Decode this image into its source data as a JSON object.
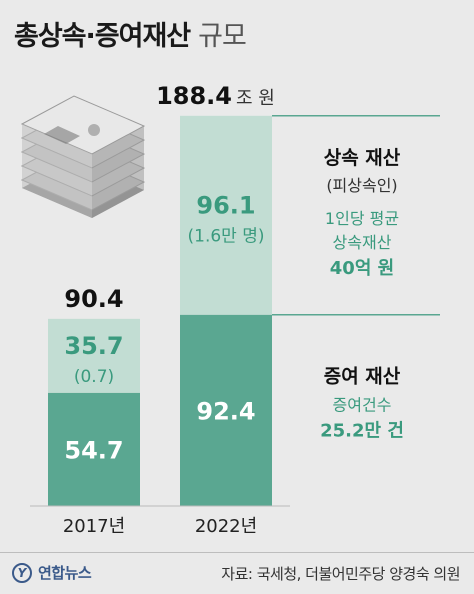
{
  "title": {
    "main": "총상속·증여재산",
    "sub": "규모"
  },
  "source": "자료: 국세청, 더불어민주당 양경숙 의원",
  "logo": {
    "mark": "Y",
    "text": "연합뉴스"
  },
  "colors": {
    "inheritance_light": "#c2ddd3",
    "gift_dark": "#5aa791",
    "accent_text": "#3a9a7e",
    "leader_line": "#5aa791"
  },
  "icon": "money-stack-icon",
  "chart_data": {
    "type": "bar",
    "stacked": true,
    "categories": [
      "2017년",
      "2022년"
    ],
    "unit": "조 원",
    "totals": [
      "90.4",
      "188.4"
    ],
    "total_values": [
      90.4,
      188.4
    ],
    "series": [
      {
        "name": "증여 재산",
        "values": [
          54.7,
          92.4
        ],
        "labels": [
          "54.7",
          "92.4"
        ],
        "sub_labels": [
          "",
          ""
        ]
      },
      {
        "name": "상속 재산",
        "values": [
          35.7,
          96.1
        ],
        "labels": [
          "35.7",
          "96.1"
        ],
        "sub_labels": [
          "(0.7)",
          "(1.6만 명)"
        ]
      }
    ],
    "legend": {
      "inheritance": {
        "title": "상속 재산",
        "sub": "(피상속인)",
        "lines": [
          "1인당 평균",
          "상속재산"
        ],
        "highlight": "40억 원"
      },
      "gift": {
        "title": "증여 재산",
        "lines": [
          "증여건수"
        ],
        "highlight": "25.2만 건"
      }
    }
  }
}
